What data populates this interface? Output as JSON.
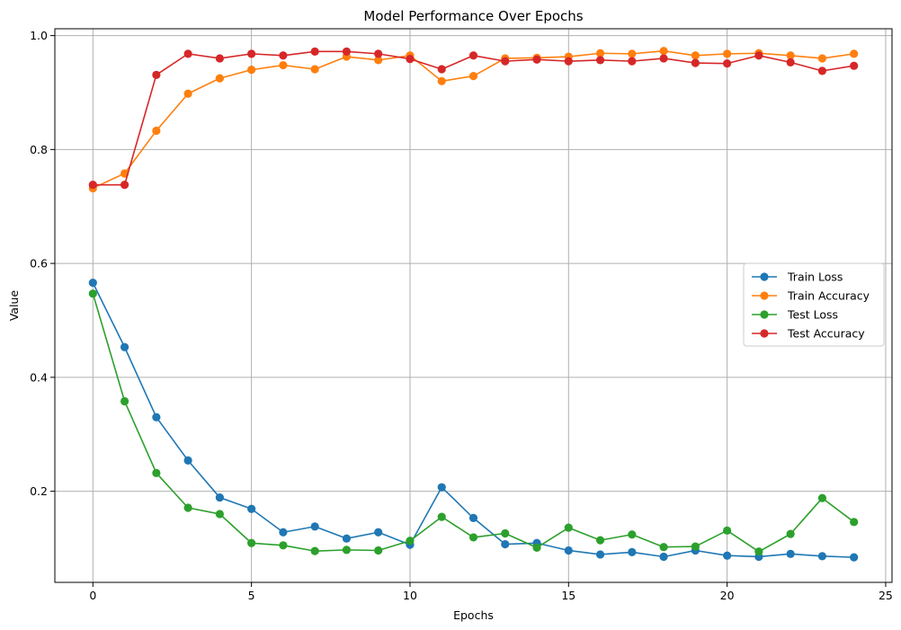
{
  "chart_data": {
    "type": "line",
    "title": "Model Performance Over Epochs",
    "xlabel": "Epochs",
    "ylabel": "Value",
    "xlim": [
      -1.2,
      25.2
    ],
    "ylim": [
      0.04,
      1.012
    ],
    "xticks": [
      0,
      5,
      10,
      15,
      20,
      25
    ],
    "yticks": [
      0.2,
      0.4,
      0.6,
      0.8,
      1.0
    ],
    "ytick_labels": [
      "0.2",
      "0.4",
      "0.6",
      "0.8",
      "1.0"
    ],
    "grid": true,
    "legend_position": "center-right",
    "x": [
      0,
      1,
      2,
      3,
      4,
      5,
      6,
      7,
      8,
      9,
      10,
      11,
      12,
      13,
      14,
      15,
      16,
      17,
      18,
      19,
      20,
      21,
      22,
      23,
      24
    ],
    "series": [
      {
        "name": "Train Loss",
        "color": "#1f77b4",
        "values": [
          0.566,
          0.453,
          0.33,
          0.254,
          0.189,
          0.169,
          0.128,
          0.138,
          0.117,
          0.128,
          0.106,
          0.207,
          0.153,
          0.107,
          0.109,
          0.096,
          0.089,
          0.093,
          0.085,
          0.096,
          0.087,
          0.085,
          0.09,
          0.086,
          0.084
        ]
      },
      {
        "name": "Train Accuracy",
        "color": "#ff7f0e",
        "values": [
          0.732,
          0.758,
          0.833,
          0.898,
          0.925,
          0.94,
          0.948,
          0.941,
          0.963,
          0.957,
          0.965,
          0.92,
          0.929,
          0.96,
          0.961,
          0.963,
          0.969,
          0.968,
          0.973,
          0.965,
          0.968,
          0.969,
          0.965,
          0.96,
          0.968
        ]
      },
      {
        "name": "Test Loss",
        "color": "#2ca02c",
        "values": [
          0.547,
          0.358,
          0.232,
          0.171,
          0.16,
          0.109,
          0.105,
          0.095,
          0.097,
          0.096,
          0.113,
          0.155,
          0.119,
          0.126,
          0.101,
          0.136,
          0.114,
          0.124,
          0.102,
          0.103,
          0.131,
          0.094,
          0.125,
          0.188,
          0.146
        ]
      },
      {
        "name": "Test Accuracy",
        "color": "#d62728",
        "values": [
          0.738,
          0.738,
          0.931,
          0.968,
          0.96,
          0.968,
          0.965,
          0.972,
          0.972,
          0.968,
          0.959,
          0.941,
          0.965,
          0.955,
          0.958,
          0.955,
          0.957,
          0.955,
          0.96,
          0.952,
          0.951,
          0.965,
          0.953,
          0.938,
          0.947
        ]
      }
    ]
  }
}
